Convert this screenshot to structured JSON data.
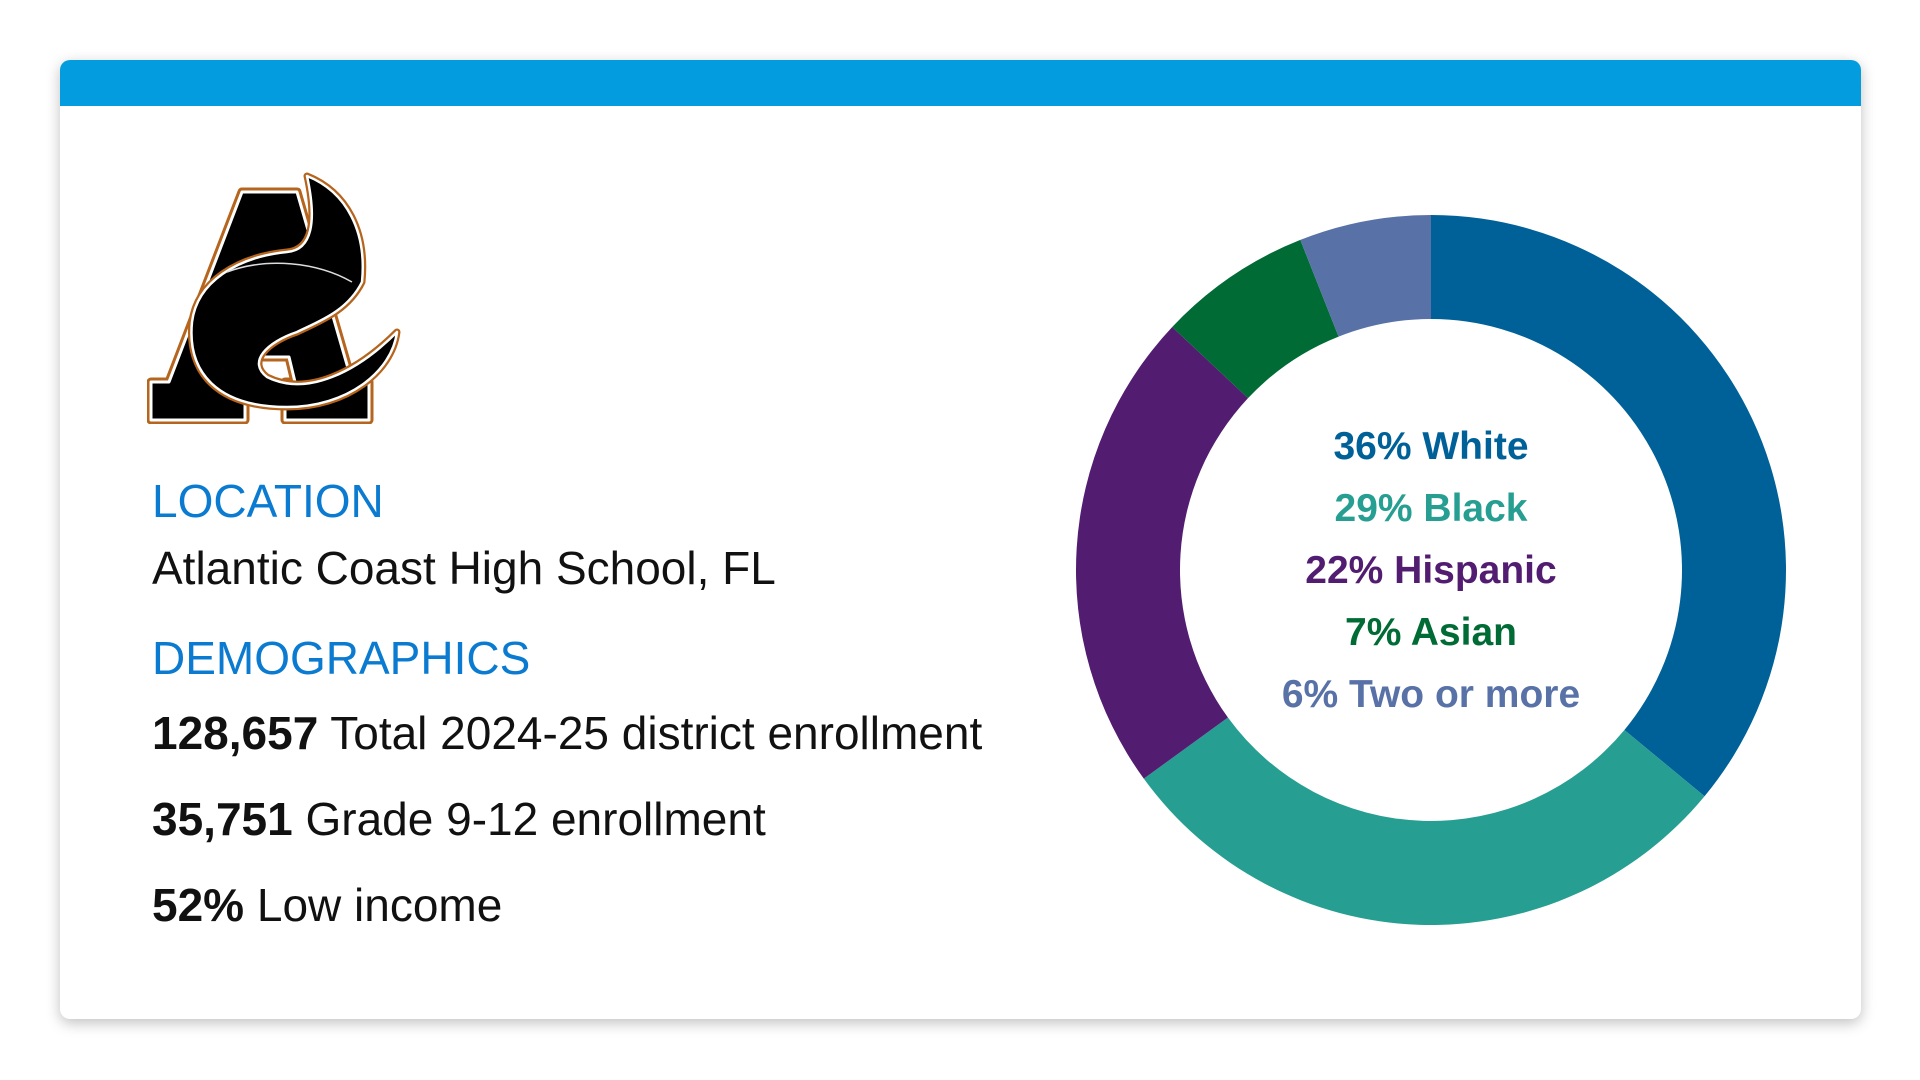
{
  "logo": {
    "name": "school-logo",
    "text": "A"
  },
  "location": {
    "heading": "LOCATION",
    "value": "Atlantic Coast High School, FL"
  },
  "demographics": {
    "heading": "DEMOGRAPHICS",
    "stats": [
      {
        "value": "128,657",
        "label": "Total 2024-25 district enrollment"
      },
      {
        "value": "35,751",
        "label": "Grade 9-12 enrollment"
      },
      {
        "value": "52%",
        "label": "Low income"
      }
    ]
  },
  "colors": {
    "accent_bar": "#039ddf",
    "heading": "#0a7bd0"
  },
  "chart_data": {
    "type": "pie",
    "donut": true,
    "categories": [
      "White",
      "Black",
      "Hispanic",
      "Asian",
      "Two or more"
    ],
    "values": [
      36,
      29,
      22,
      7,
      6
    ],
    "labels": [
      "36% White",
      "29% Black",
      "22% Hispanic",
      "7% Asian",
      "6% Two or more"
    ],
    "colors": [
      "#006199",
      "#269e91",
      "#521c70",
      "#006b35",
      "#5872a8"
    ],
    "start": "top",
    "direction": "clockwise"
  }
}
